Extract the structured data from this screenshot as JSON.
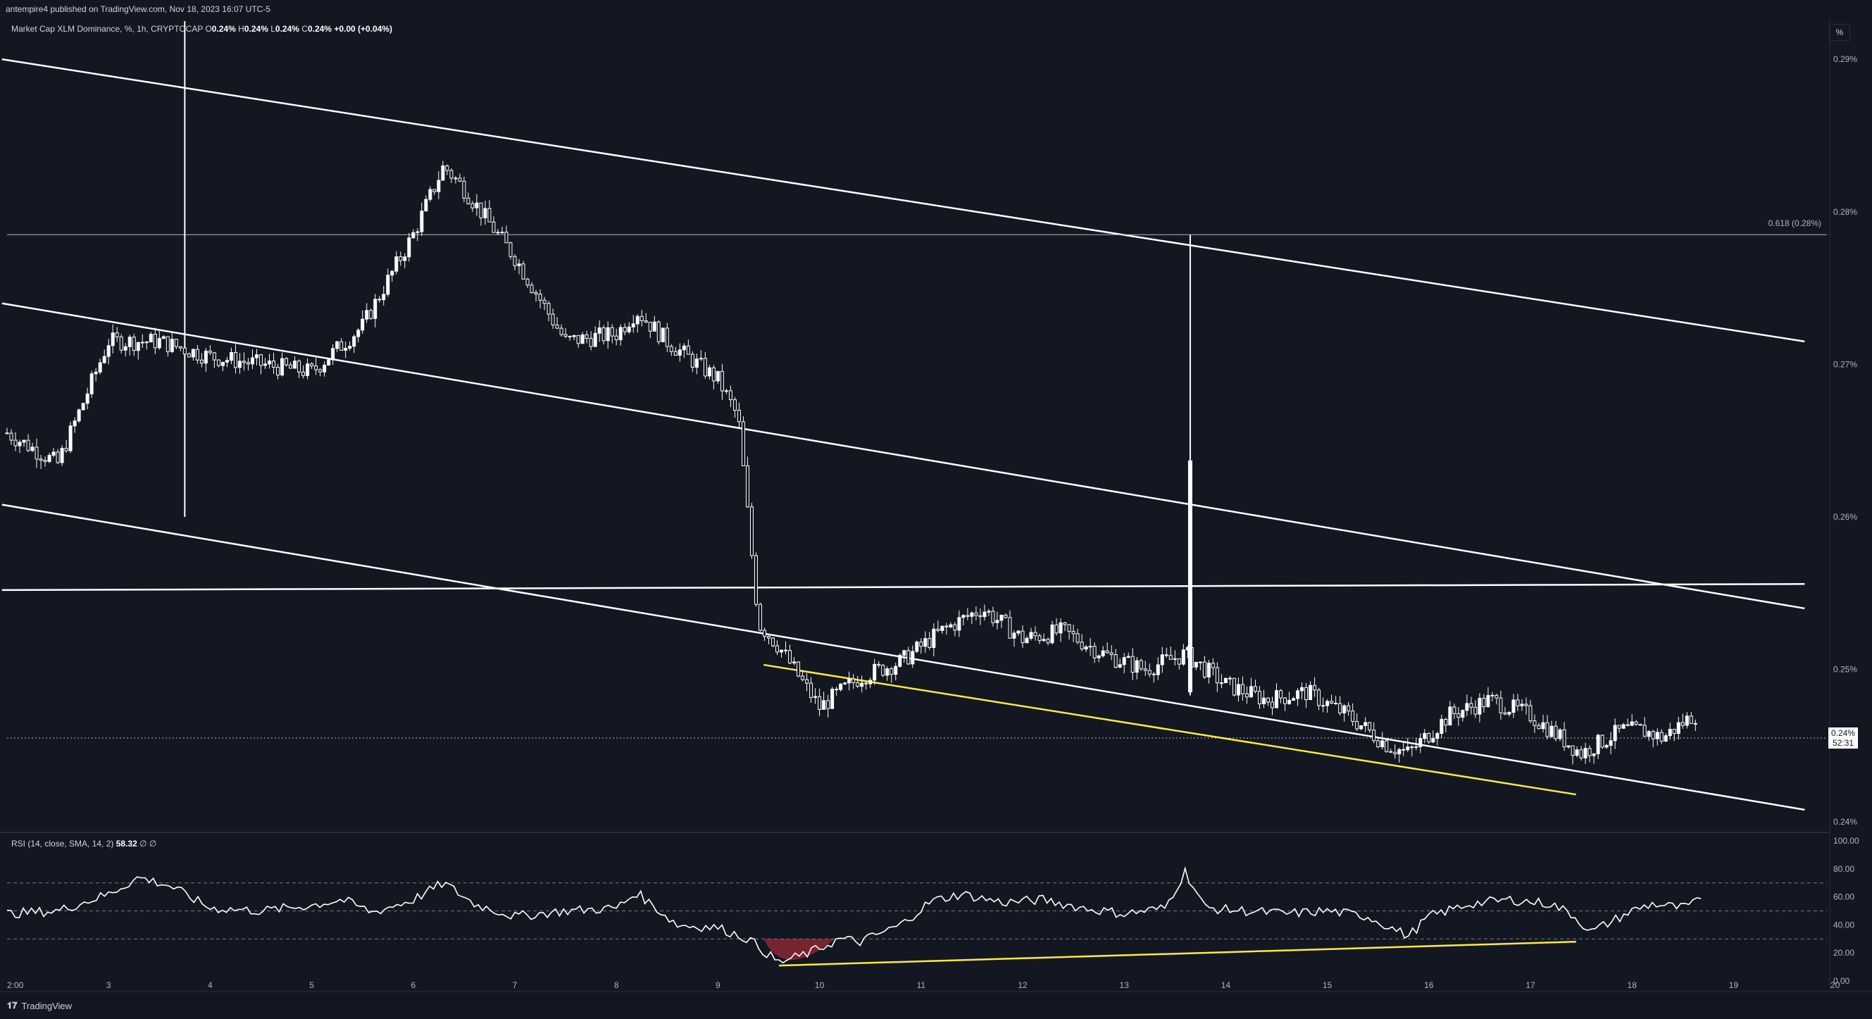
{
  "header": {
    "publisher_line": "antempire4 published on TradingView.com, Nov 18, 2023 16:07 UTC-5"
  },
  "legend": {
    "symbol": "Market Cap XLM Dominance, %, 1h, CRYPTOCAP",
    "o_label": "O",
    "o_value": "0.24%",
    "h_label": "H",
    "h_value": "0.24%",
    "l_label": "L",
    "l_value": "0.24%",
    "c_label": "C",
    "c_value": "0.24%",
    "change": "+0.00 (+0.04%)"
  },
  "scale_button": "%",
  "current_price": {
    "value": "0.24%",
    "countdown": "52:31"
  },
  "fib_label": "0.618 (0.28%)",
  "rsi_legend": {
    "label": "RSI (14, close, SMA, 14, 2)",
    "value": "58.32",
    "extra": "∅ ∅"
  },
  "footer": {
    "brand": "TradingView"
  },
  "colors": {
    "background": "#131722",
    "candles": "#ffffff",
    "trendline_yellow": "#ffeb3b",
    "rsi_line": "#ffffff",
    "oversold_fill": "#f23645"
  },
  "chart_data": [
    {
      "type": "candlestick",
      "title": "Market Cap XLM Dominance, %, 1h, CRYPTOCAP",
      "xlabel": "",
      "ylabel": "",
      "x_ticks": [
        "2:00",
        "3",
        "4",
        "5",
        "6",
        "7",
        "8",
        "9",
        "10",
        "11",
        "12",
        "13",
        "14",
        "15",
        "16",
        "17",
        "18",
        "19",
        "20"
      ],
      "y_ticks": [
        "0.29%",
        "0.28%",
        "0.27%",
        "0.26%",
        "0.25%",
        "0.24%"
      ],
      "ylim": [
        0.2395,
        0.2925
      ],
      "grid": false,
      "series": [
        {
          "name": "close (approx, by day)",
          "x": [
            2.0,
            2.5,
            3.0,
            3.5,
            4.0,
            4.5,
            5.0,
            5.5,
            6.0,
            6.3,
            6.5,
            7.0,
            7.5,
            8.0,
            8.2,
            8.5,
            9.0,
            9.2,
            9.4,
            9.6,
            10.0,
            10.4,
            10.8,
            11.2,
            11.6,
            12.0,
            12.4,
            12.8,
            13.2,
            13.6,
            14.0,
            14.4,
            14.8,
            15.2,
            15.6,
            15.8,
            16.2,
            16.6,
            17.0,
            17.3,
            17.5,
            17.9,
            18.1,
            18.3,
            18.6
          ],
          "values": [
            0.2655,
            0.2635,
            0.2715,
            0.2715,
            0.2705,
            0.27,
            0.2695,
            0.2725,
            0.2785,
            0.283,
            0.2815,
            0.277,
            0.2715,
            0.272,
            0.2735,
            0.2715,
            0.269,
            0.2665,
            0.253,
            0.2515,
            0.2475,
            0.2495,
            0.2505,
            0.2525,
            0.254,
            0.252,
            0.2525,
            0.251,
            0.25,
            0.251,
            0.249,
            0.248,
            0.2485,
            0.247,
            0.245,
            0.2445,
            0.247,
            0.248,
            0.247,
            0.2455,
            0.2445,
            0.246,
            0.246,
            0.2455,
            0.247
          ]
        }
      ],
      "annotations": [
        {
          "type": "trendline",
          "description": "upper channel line",
          "from": [
            1.95,
            0.29
          ],
          "to": [
            19.7,
            0.2715
          ]
        },
        {
          "type": "trendline",
          "description": "middle channel line",
          "from": [
            1.95,
            0.274
          ],
          "to": [
            19.7,
            0.254
          ]
        },
        {
          "type": "trendline",
          "description": "lower channel line",
          "from": [
            1.95,
            0.2608
          ],
          "to": [
            19.7,
            0.2408
          ]
        },
        {
          "type": "horizontal",
          "description": "support/resistance",
          "from": [
            1.95,
            0.2552
          ],
          "to": [
            19.7,
            0.2556
          ]
        },
        {
          "type": "horizontal",
          "description": "fib 0.618 level",
          "y": 0.2785,
          "label": "0.618 (0.28%)"
        },
        {
          "type": "trendline",
          "color": "yellow",
          "from": [
            9.45,
            0.2503
          ],
          "to": [
            17.45,
            0.2418
          ]
        },
        {
          "type": "vertical",
          "x": 3.75,
          "from": 0.26,
          "to": 0.2925
        },
        {
          "type": "vertical",
          "x": 13.65,
          "from": 0.2483,
          "to": 0.2785
        }
      ]
    },
    {
      "type": "line",
      "title": "RSI (14, close, SMA, 14, 2)",
      "y_ticks": [
        "100.00",
        "80.00",
        "60.00",
        "40.00",
        "20.00",
        "0.00"
      ],
      "ylim": [
        0,
        100
      ],
      "bands": [
        30,
        50,
        70
      ],
      "series": [
        {
          "name": "RSI",
          "x": [
            2.0,
            2.5,
            3.0,
            3.3,
            3.6,
            4.0,
            4.5,
            5.0,
            5.3,
            5.6,
            6.0,
            6.3,
            6.6,
            7.0,
            7.5,
            8.0,
            8.2,
            8.6,
            9.0,
            9.3,
            9.6,
            9.9,
            10.2,
            10.4,
            10.8,
            11.1,
            11.4,
            11.8,
            12.2,
            12.6,
            13.0,
            13.4,
            13.6,
            13.8,
            14.2,
            14.6,
            15.0,
            15.4,
            15.8,
            16.0,
            16.4,
            16.8,
            17.2,
            17.4,
            17.6,
            18.0,
            18.2,
            18.5,
            18.7
          ],
          "values": [
            48,
            50,
            62,
            74,
            68,
            52,
            50,
            54,
            58,
            49,
            58,
            70,
            55,
            46,
            50,
            52,
            63,
            40,
            38,
            30,
            13,
            20,
            30,
            28,
            40,
            57,
            62,
            56,
            58,
            52,
            48,
            52,
            78,
            52,
            50,
            48,
            50,
            46,
            32,
            46,
            55,
            58,
            55,
            48,
            35,
            50,
            55,
            52,
            58
          ]
        },
        {
          "name": "divergence line",
          "x": [
            9.6,
            17.45
          ],
          "values": [
            11,
            28
          ]
        }
      ]
    }
  ]
}
